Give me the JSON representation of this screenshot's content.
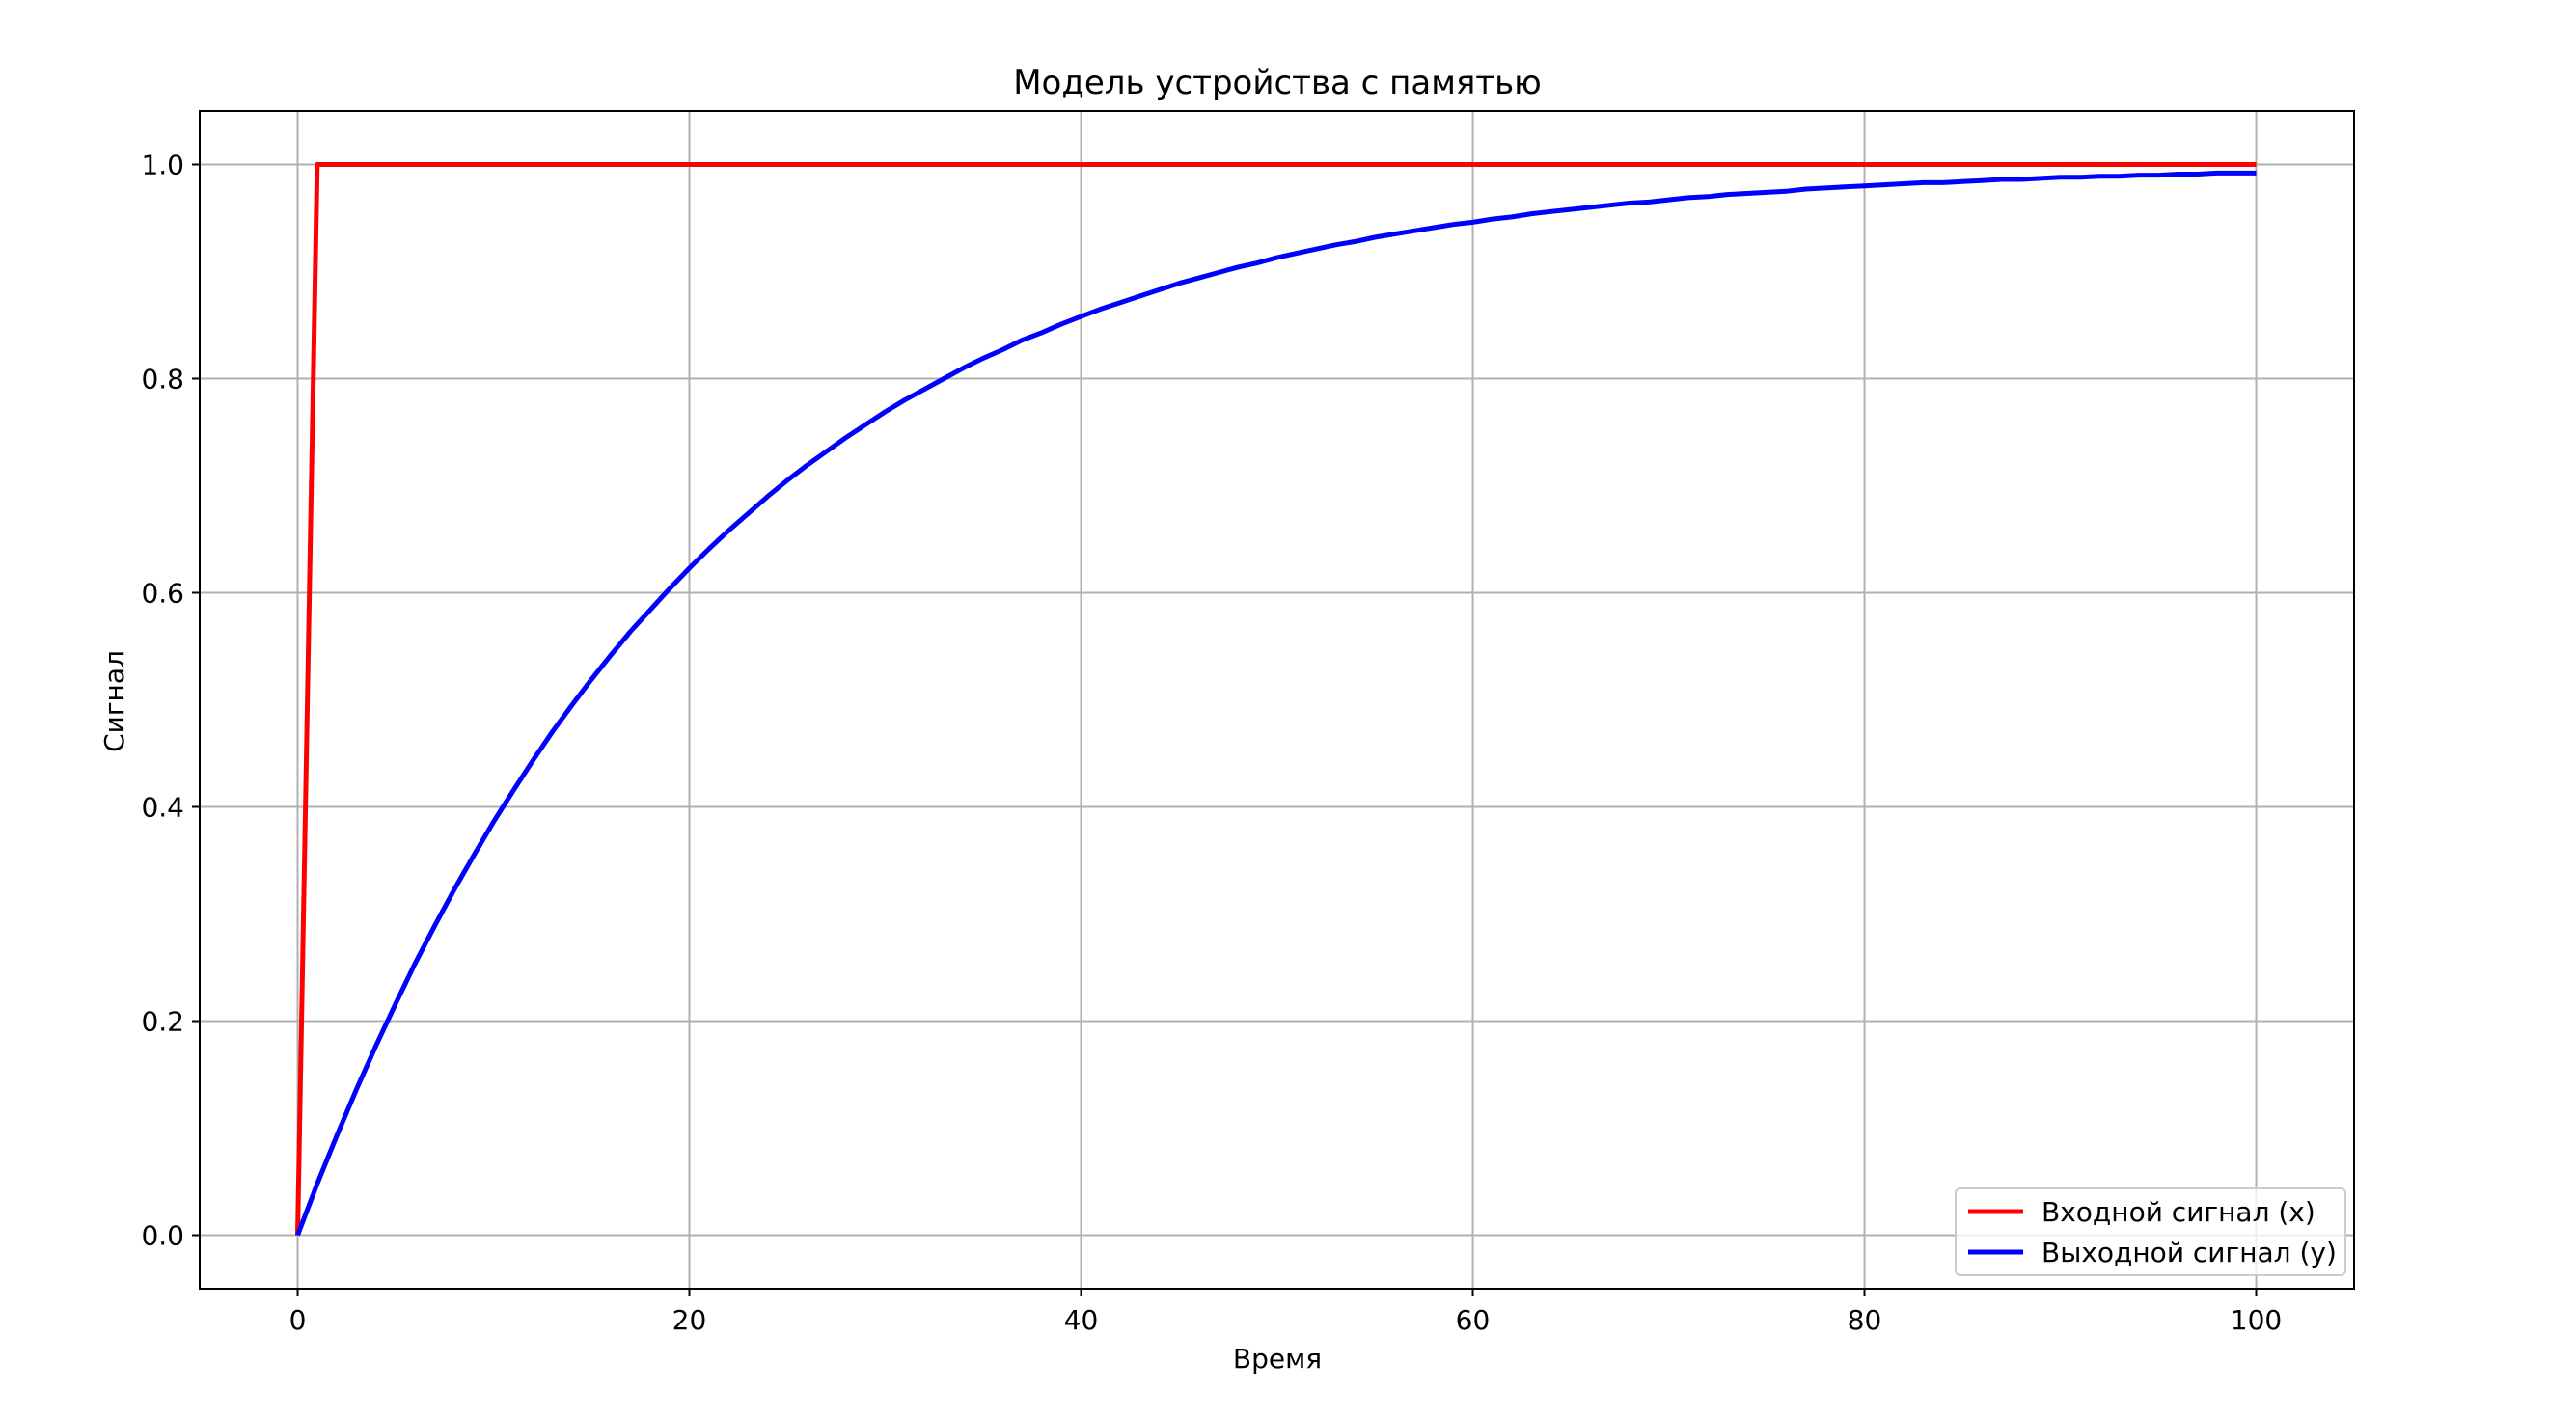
{
  "chart_data": {
    "type": "line",
    "title": "Модель устройства с памятью",
    "xlabel": "Время",
    "ylabel": "Сигнал",
    "xlim": [
      -5,
      105
    ],
    "ylim": [
      -0.05,
      1.05
    ],
    "xticks": [
      0,
      20,
      40,
      60,
      80,
      100
    ],
    "xtick_labels": [
      "0",
      "20",
      "40",
      "60",
      "80",
      "100"
    ],
    "yticks": [
      0.0,
      0.2,
      0.4,
      0.6,
      0.8,
      1.0
    ],
    "ytick_labels": [
      "0.0",
      "0.2",
      "0.4",
      "0.6",
      "0.8",
      "1.0"
    ],
    "grid": true,
    "legend_placement": "lower-right",
    "series": [
      {
        "name": "Входной сигнал (x)",
        "color": "#ff0000",
        "x": [
          0,
          1,
          100
        ],
        "y": [
          0,
          1,
          1
        ]
      },
      {
        "name": "Выходной сигнал (y)",
        "color": "#0000ff",
        "x": [
          0,
          1,
          2,
          3,
          4,
          5,
          6,
          7,
          8,
          9,
          10,
          11,
          12,
          13,
          14,
          15,
          16,
          17,
          18,
          19,
          20,
          21,
          22,
          23,
          24,
          25,
          26,
          27,
          28,
          29,
          30,
          31,
          32,
          33,
          34,
          35,
          36,
          37,
          38,
          39,
          40,
          41,
          42,
          43,
          44,
          45,
          46,
          47,
          48,
          49,
          50,
          51,
          52,
          53,
          54,
          55,
          56,
          57,
          58,
          59,
          60,
          61,
          62,
          63,
          64,
          65,
          66,
          67,
          68,
          69,
          70,
          71,
          72,
          73,
          74,
          75,
          76,
          77,
          78,
          79,
          80,
          81,
          82,
          83,
          84,
          85,
          86,
          87,
          88,
          89,
          90,
          91,
          92,
          93,
          94,
          95,
          96,
          97,
          98,
          99,
          100
        ],
        "y": [
          0,
          0.048,
          0.093,
          0.136,
          0.177,
          0.216,
          0.254,
          0.289,
          0.323,
          0.355,
          0.386,
          0.415,
          0.443,
          0.47,
          0.495,
          0.519,
          0.542,
          0.564,
          0.584,
          0.604,
          0.623,
          0.641,
          0.658,
          0.674,
          0.69,
          0.705,
          0.719,
          0.732,
          0.745,
          0.757,
          0.769,
          0.78,
          0.79,
          0.8,
          0.81,
          0.819,
          0.827,
          0.836,
          0.843,
          0.851,
          0.858,
          0.865,
          0.871,
          0.877,
          0.883,
          0.889,
          0.894,
          0.899,
          0.904,
          0.908,
          0.913,
          0.917,
          0.921,
          0.925,
          0.928,
          0.932,
          0.935,
          0.938,
          0.941,
          0.944,
          0.946,
          0.949,
          0.951,
          0.954,
          0.956,
          0.958,
          0.96,
          0.962,
          0.964,
          0.965,
          0.967,
          0.969,
          0.97,
          0.972,
          0.973,
          0.974,
          0.975,
          0.977,
          0.978,
          0.979,
          0.98,
          0.981,
          0.982,
          0.983,
          0.983,
          0.984,
          0.985,
          0.986,
          0.986,
          0.987,
          0.988,
          0.988,
          0.989,
          0.989,
          0.99,
          0.99,
          0.991,
          0.991,
          0.992,
          0.992,
          0.992
        ]
      }
    ]
  }
}
